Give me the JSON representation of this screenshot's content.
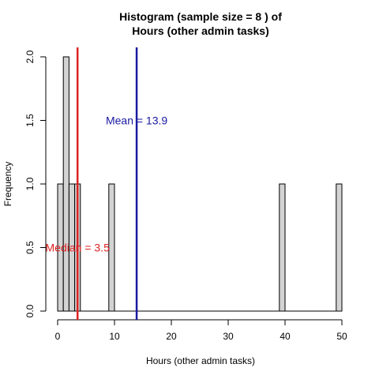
{
  "chart_data": {
    "type": "bar",
    "title": [
      "Histogram (sample size =  8 ) of",
      "Hours (other admin tasks)"
    ],
    "xlabel": "Hours (other admin tasks)",
    "ylabel": "Frequency",
    "xlim": [
      -2,
      50
    ],
    "ylim": [
      0,
      2
    ],
    "xticks": [
      0,
      10,
      20,
      30,
      40,
      50
    ],
    "xtick_labels": [
      "0",
      "10",
      "20",
      "30",
      "40",
      "50"
    ],
    "yticks": [
      0,
      0.5,
      1,
      1.5,
      2
    ],
    "ytick_labels": [
      "0.0",
      "0.5",
      "1.0",
      "1.5",
      "2.0"
    ],
    "bin_width": 1,
    "bins": [
      {
        "x0": 0,
        "x1": 1,
        "count": 1
      },
      {
        "x0": 1,
        "x1": 2,
        "count": 2
      },
      {
        "x0": 2,
        "x1": 3,
        "count": 1
      },
      {
        "x0": 3,
        "x1": 4,
        "count": 1
      },
      {
        "x0": 9,
        "x1": 10,
        "count": 1
      },
      {
        "x0": 39,
        "x1": 40,
        "count": 1
      },
      {
        "x0": 49,
        "x1": 50,
        "count": 1
      }
    ],
    "bar_fill": "#d3d3d3",
    "bar_stroke": "#000000",
    "median": {
      "value": 3.5,
      "label": "Median = 3.5",
      "color": "#dd2222",
      "label_y": 0.5
    },
    "mean": {
      "value": 13.9,
      "label": "Mean = 13.9",
      "color": "#1a1aa0",
      "label_y": 1.5
    }
  }
}
